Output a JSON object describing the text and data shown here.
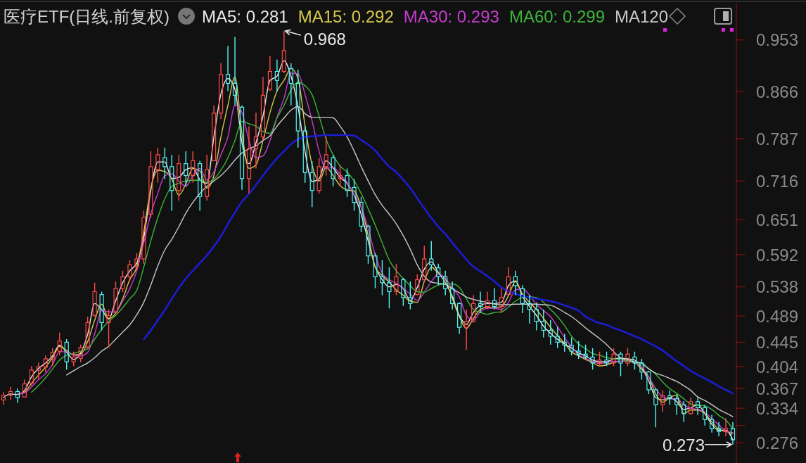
{
  "chart_data": {
    "type": "candlestick",
    "title": "医疗ETF(日线.前复权)",
    "categories": [
      null,
      null,
      null,
      null,
      null,
      null,
      null,
      null,
      null,
      null,
      null,
      null,
      null,
      null,
      null,
      null,
      null,
      null,
      null,
      null,
      null,
      null,
      null,
      null,
      null,
      null,
      null,
      null,
      null,
      null,
      null,
      null,
      null,
      null,
      null,
      null,
      null,
      null,
      null,
      null,
      null,
      null,
      null,
      null,
      null,
      null,
      null,
      null,
      null,
      null,
      null,
      null,
      null,
      null,
      null,
      null,
      null,
      null,
      null,
      null,
      null,
      null,
      null,
      null,
      null,
      null,
      null,
      null,
      null,
      null,
      null,
      null,
      null,
      null,
      null,
      null,
      null,
      null,
      null,
      null,
      null,
      null,
      null,
      null,
      null,
      null,
      null,
      null,
      null,
      null,
      null,
      null,
      null,
      null,
      null,
      null,
      null,
      null,
      null,
      null,
      null,
      null,
      null,
      null,
      null
    ],
    "ohlc": [
      [
        0.348,
        0.361,
        0.34,
        0.356
      ],
      [
        0.356,
        0.37,
        0.348,
        0.362
      ],
      [
        0.362,
        0.367,
        0.343,
        0.352
      ],
      [
        0.353,
        0.382,
        0.352,
        0.375
      ],
      [
        0.376,
        0.405,
        0.372,
        0.398
      ],
      [
        0.398,
        0.411,
        0.382,
        0.404
      ],
      [
        0.403,
        0.423,
        0.394,
        0.417
      ],
      [
        0.416,
        0.435,
        0.405,
        0.428
      ],
      [
        0.43,
        0.461,
        0.423,
        0.447
      ],
      [
        0.445,
        0.45,
        0.399,
        0.412
      ],
      [
        0.412,
        0.429,
        0.405,
        0.42
      ],
      [
        0.418,
        0.441,
        0.411,
        0.436
      ],
      [
        0.437,
        0.488,
        0.435,
        0.478
      ],
      [
        0.49,
        0.545,
        0.488,
        0.53
      ],
      [
        0.525,
        0.53,
        0.465,
        0.478
      ],
      [
        0.478,
        0.5,
        0.436,
        0.49
      ],
      [
        0.495,
        0.547,
        0.494,
        0.535
      ],
      [
        0.535,
        0.565,
        0.529,
        0.555
      ],
      [
        0.555,
        0.583,
        0.547,
        0.575
      ],
      [
        0.572,
        0.595,
        0.565,
        0.585
      ],
      [
        0.585,
        0.666,
        0.577,
        0.655
      ],
      [
        0.66,
        0.766,
        0.654,
        0.74
      ],
      [
        0.735,
        0.772,
        0.713,
        0.76
      ],
      [
        0.755,
        0.772,
        0.719,
        0.74
      ],
      [
        0.74,
        0.76,
        0.666,
        0.7
      ],
      [
        0.7,
        0.76,
        0.683,
        0.745
      ],
      [
        0.745,
        0.766,
        0.707,
        0.725
      ],
      [
        0.725,
        0.766,
        0.713,
        0.75
      ],
      [
        0.745,
        0.75,
        0.666,
        0.69
      ],
      [
        0.69,
        0.76,
        0.683,
        0.735
      ],
      [
        0.75,
        0.843,
        0.749,
        0.83
      ],
      [
        0.83,
        0.914,
        0.82,
        0.895
      ],
      [
        0.895,
        0.943,
        0.867,
        0.88
      ],
      [
        0.88,
        0.958,
        0.843,
        0.86
      ],
      [
        0.84,
        0.843,
        0.701,
        0.72
      ],
      [
        0.72,
        0.808,
        0.695,
        0.77
      ],
      [
        0.77,
        0.831,
        0.737,
        0.79
      ],
      [
        0.79,
        0.891,
        0.784,
        0.86
      ],
      [
        0.87,
        0.926,
        0.867,
        0.9
      ],
      [
        0.9,
        0.92,
        0.867,
        0.885
      ],
      [
        0.9,
        0.968,
        0.897,
        0.935
      ],
      [
        0.905,
        0.914,
        0.843,
        0.88
      ],
      [
        0.88,
        0.903,
        0.772,
        0.8
      ],
      [
        0.8,
        0.808,
        0.713,
        0.73
      ],
      [
        0.73,
        0.749,
        0.672,
        0.7
      ],
      [
        0.7,
        0.755,
        0.695,
        0.74
      ],
      [
        0.74,
        0.79,
        0.725,
        0.76
      ],
      [
        0.755,
        0.76,
        0.707,
        0.72
      ],
      [
        0.72,
        0.743,
        0.707,
        0.725
      ],
      [
        0.725,
        0.737,
        0.689,
        0.7
      ],
      [
        0.705,
        0.719,
        0.666,
        0.68
      ],
      [
        0.68,
        0.689,
        0.63,
        0.64
      ],
      [
        0.64,
        0.642,
        0.577,
        0.59
      ],
      [
        0.59,
        0.595,
        0.536,
        0.555
      ],
      [
        0.555,
        0.583,
        0.524,
        0.545
      ],
      [
        0.545,
        0.571,
        0.502,
        0.53
      ],
      [
        0.53,
        0.577,
        0.524,
        0.555
      ],
      [
        0.55,
        0.553,
        0.506,
        0.52
      ],
      [
        0.52,
        0.547,
        0.5,
        0.51
      ],
      [
        0.525,
        0.559,
        0.524,
        0.55
      ],
      [
        0.55,
        0.607,
        0.547,
        0.585
      ],
      [
        0.585,
        0.615,
        0.565,
        0.575
      ],
      [
        0.57,
        0.577,
        0.541,
        0.555
      ],
      [
        0.555,
        0.565,
        0.524,
        0.535
      ],
      [
        0.535,
        0.547,
        0.5,
        0.51
      ],
      [
        0.51,
        0.512,
        0.459,
        0.47
      ],
      [
        0.47,
        0.5,
        0.432,
        0.48
      ],
      [
        0.48,
        0.524,
        0.478,
        0.51
      ],
      [
        0.51,
        0.53,
        0.494,
        0.505
      ],
      [
        0.505,
        0.53,
        0.5,
        0.515
      ],
      [
        0.515,
        0.536,
        0.5,
        0.505
      ],
      [
        0.505,
        0.536,
        0.494,
        0.52
      ],
      [
        0.525,
        0.571,
        0.524,
        0.555
      ],
      [
        0.555,
        0.565,
        0.524,
        0.54
      ],
      [
        0.535,
        0.541,
        0.494,
        0.51
      ],
      [
        0.51,
        0.524,
        0.476,
        0.5
      ],
      [
        0.5,
        0.512,
        0.465,
        0.48
      ],
      [
        0.48,
        0.5,
        0.453,
        0.465
      ],
      [
        0.465,
        0.482,
        0.441,
        0.455
      ],
      [
        0.455,
        0.471,
        0.435,
        0.445
      ],
      [
        0.445,
        0.459,
        0.429,
        0.44
      ],
      [
        0.44,
        0.453,
        0.423,
        0.43
      ],
      [
        0.43,
        0.447,
        0.417,
        0.425
      ],
      [
        0.425,
        0.441,
        0.417,
        0.42
      ],
      [
        0.42,
        0.435,
        0.399,
        0.41
      ],
      [
        0.41,
        0.429,
        0.405,
        0.415
      ],
      [
        0.415,
        0.429,
        0.405,
        0.41
      ],
      [
        0.41,
        0.435,
        0.405,
        0.425
      ],
      [
        0.425,
        0.429,
        0.388,
        0.41
      ],
      [
        0.41,
        0.435,
        0.405,
        0.425
      ],
      [
        0.42,
        0.429,
        0.399,
        0.41
      ],
      [
        0.41,
        0.417,
        0.382,
        0.395
      ],
      [
        0.395,
        0.397,
        0.358,
        0.365
      ],
      [
        0.365,
        0.368,
        0.302,
        0.34
      ],
      [
        0.34,
        0.364,
        0.328,
        0.355
      ],
      [
        0.355,
        0.364,
        0.34,
        0.35
      ],
      [
        0.35,
        0.358,
        0.323,
        0.34
      ],
      [
        0.34,
        0.346,
        0.311,
        0.325
      ],
      [
        0.325,
        0.352,
        0.323,
        0.345
      ],
      [
        0.345,
        0.352,
        0.323,
        0.335
      ],
      [
        0.335,
        0.34,
        0.305,
        0.315
      ],
      [
        0.315,
        0.323,
        0.293,
        0.3
      ],
      [
        0.3,
        0.311,
        0.287,
        0.295
      ],
      [
        0.295,
        0.317,
        0.287,
        0.3
      ],
      [
        0.3,
        0.311,
        0.273,
        0.281
      ]
    ],
    "series": [
      {
        "name": "MA5: 0.281",
        "type": "line",
        "color": "#e8e8e8",
        "values": [
          0.352,
          0.358,
          0.357,
          0.364,
          0.387,
          0.401,
          0.41,
          0.422,
          0.44,
          0.428,
          0.416,
          0.427,
          0.458,
          0.51,
          0.5,
          0.484,
          0.515,
          0.545,
          0.565,
          0.578,
          0.62,
          0.7,
          0.748,
          0.748,
          0.72,
          0.722,
          0.735,
          0.738,
          0.718,
          0.712,
          0.79,
          0.862,
          0.888,
          0.87,
          0.78,
          0.745,
          0.78,
          0.825,
          0.885,
          0.892,
          0.918,
          0.892,
          0.84,
          0.765,
          0.715,
          0.72,
          0.75,
          0.738,
          0.722,
          0.712,
          0.692,
          0.66,
          0.615,
          0.572,
          0.55,
          0.538,
          0.542,
          0.535,
          0.515,
          0.537,
          0.568,
          0.58,
          0.562,
          0.545,
          0.522,
          0.49,
          0.475,
          0.495,
          0.507,
          0.51,
          0.51,
          0.512,
          0.54,
          0.548,
          0.522,
          0.505,
          0.49,
          0.472,
          0.46,
          0.45,
          0.442,
          0.435,
          0.427,
          0.422,
          0.415,
          0.412,
          0.412,
          0.417,
          0.418,
          0.417,
          0.415,
          0.402,
          0.38,
          0.352,
          0.348,
          0.352,
          0.345,
          0.332,
          0.335,
          0.34,
          0.325,
          0.307,
          0.297,
          0.297,
          0.281
        ]
      },
      {
        "name": "MA15: 0.292",
        "type": "line",
        "color": "#d8c94a",
        "values": [
          null,
          null,
          0.358,
          0.361,
          0.376,
          0.39,
          0.403,
          0.419,
          0.438,
          0.431,
          0.424,
          0.425,
          0.446,
          0.482,
          0.509,
          0.485,
          0.494,
          0.518,
          0.55,
          0.571,
          0.63,
          0.704,
          0.734,
          0.732,
          0.719,
          0.692,
          0.711,
          0.737,
          0.733,
          0.704,
          0.725,
          0.79,
          0.843,
          0.891,
          0.796,
          0.737,
          0.743,
          0.784,
          0.831,
          0.867,
          0.885,
          0.905,
          0.888,
          0.808,
          0.743,
          0.716,
          0.739,
          0.725,
          0.708,
          0.701,
          0.699,
          0.672,
          0.624,
          0.571,
          0.557,
          0.546,
          0.533,
          0.524,
          0.514,
          0.512,
          0.547,
          0.571,
          0.561,
          0.551,
          0.518,
          0.488,
          0.468,
          0.485,
          0.5,
          0.504,
          0.503,
          0.505,
          0.523,
          0.547,
          0.526,
          0.512,
          0.5,
          0.485,
          0.47,
          0.456,
          0.443,
          0.429,
          0.422,
          0.416,
          0.411,
          0.405,
          0.407,
          0.411,
          0.413,
          0.413,
          0.411,
          0.399,
          0.387,
          0.358,
          0.344,
          0.352,
          0.356,
          0.325,
          0.331,
          0.331,
          0.325,
          0.311,
          0.299,
          0.295,
          0.292
        ]
      },
      {
        "name": "MA30: 0.293",
        "type": "line",
        "color": "#c63ccf",
        "values": [
          null,
          null,
          0.358,
          0.36,
          0.37,
          0.382,
          0.392,
          0.408,
          0.429,
          0.429,
          0.423,
          0.422,
          0.428,
          0.459,
          0.498,
          0.496,
          0.496,
          0.514,
          0.535,
          0.565,
          0.612,
          0.66,
          0.695,
          0.725,
          0.728,
          0.716,
          0.707,
          0.725,
          0.737,
          0.718,
          0.731,
          0.76,
          0.79,
          0.843,
          0.831,
          0.784,
          0.755,
          0.758,
          0.784,
          0.823,
          0.855,
          0.897,
          0.896,
          0.861,
          0.817,
          0.766,
          0.737,
          0.739,
          0.727,
          0.713,
          0.693,
          0.672,
          0.636,
          0.592,
          0.561,
          0.55,
          0.544,
          0.535,
          0.526,
          0.515,
          0.529,
          0.547,
          0.559,
          0.553,
          0.535,
          0.521,
          0.49,
          0.482,
          0.496,
          0.502,
          0.502,
          0.5,
          0.512,
          0.533,
          0.535,
          0.524,
          0.508,
          0.498,
          0.488,
          0.471,
          0.453,
          0.437,
          0.424,
          0.418,
          0.413,
          0.409,
          0.411,
          0.413,
          0.413,
          0.413,
          0.41,
          0.403,
          0.387,
          0.367,
          0.353,
          0.35,
          0.35,
          0.34,
          0.334,
          0.332,
          0.328,
          0.316,
          0.306,
          0.296,
          0.293
        ]
      },
      {
        "name": "MA60: 0.299",
        "type": "line",
        "color": "#3cb43c",
        "values": [
          null,
          null,
          null,
          null,
          0.361,
          0.372,
          0.385,
          0.4,
          0.415,
          0.423,
          0.426,
          0.43,
          0.434,
          0.45,
          0.467,
          0.48,
          0.49,
          0.503,
          0.518,
          0.532,
          0.571,
          0.615,
          0.654,
          0.686,
          0.707,
          0.712,
          0.716,
          0.717,
          0.717,
          0.714,
          0.719,
          0.734,
          0.755,
          0.784,
          0.816,
          0.812,
          0.808,
          0.799,
          0.796,
          0.822,
          0.843,
          0.869,
          0.882,
          0.876,
          0.861,
          0.825,
          0.786,
          0.76,
          0.741,
          0.731,
          0.716,
          0.695,
          0.669,
          0.642,
          0.612,
          0.583,
          0.565,
          0.552,
          0.54,
          0.53,
          0.529,
          0.535,
          0.541,
          0.543,
          0.543,
          0.537,
          0.518,
          0.5,
          0.495,
          0.492,
          0.495,
          0.496,
          0.504,
          0.514,
          0.52,
          0.521,
          0.52,
          0.512,
          0.5,
          0.488,
          0.473,
          0.455,
          0.442,
          0.434,
          0.426,
          0.423,
          0.419,
          0.417,
          0.416,
          0.413,
          0.411,
          0.407,
          0.401,
          0.391,
          0.378,
          0.367,
          0.359,
          0.35,
          0.341,
          0.339,
          0.338,
          0.332,
          0.322,
          0.314,
          0.299
        ]
      },
      {
        "name": "MA120",
        "type": "line",
        "color": "#c8c8c8",
        "values": [
          null,
          null,
          null,
          null,
          null,
          null,
          null,
          null,
          null,
          0.39,
          0.397,
          0.404,
          0.41,
          0.419,
          0.43,
          0.438,
          0.45,
          0.462,
          0.474,
          0.491,
          0.512,
          0.541,
          0.573,
          0.6,
          0.618,
          0.639,
          0.662,
          0.68,
          0.695,
          0.707,
          0.716,
          0.725,
          0.737,
          0.751,
          0.763,
          0.77,
          0.775,
          0.784,
          0.792,
          0.808,
          0.822,
          0.835,
          0.841,
          0.829,
          0.823,
          0.823,
          0.823,
          0.822,
          0.808,
          0.79,
          0.766,
          0.74,
          0.716,
          0.693,
          0.675,
          0.66,
          0.644,
          0.624,
          0.601,
          0.575,
          0.556,
          0.546,
          0.544,
          0.542,
          0.535,
          0.528,
          0.521,
          0.517,
          0.514,
          0.512,
          0.509,
          0.508,
          0.508,
          0.509,
          0.509,
          0.509,
          0.509,
          0.508,
          0.507,
          0.502,
          0.495,
          0.488,
          0.479,
          0.469,
          0.46,
          0.451,
          0.441,
          0.429,
          0.419,
          0.415,
          0.412,
          0.41,
          0.4,
          0.393,
          0.389,
          0.384,
          0.379,
          0.372,
          0.364,
          0.353,
          0.347,
          0.34,
          0.332,
          0.326,
          0.32
        ]
      },
      {
        "type": "line",
        "color": "#1c1cd2",
        "values": [
          null,
          null,
          null,
          null,
          null,
          null,
          null,
          null,
          null,
          null,
          null,
          null,
          null,
          null,
          null,
          null,
          null,
          null,
          null,
          null,
          0.45,
          0.465,
          0.482,
          0.499,
          0.518,
          0.536,
          0.552,
          0.565,
          0.578,
          0.591,
          0.606,
          0.623,
          0.644,
          0.663,
          0.681,
          0.694,
          0.709,
          0.725,
          0.74,
          0.754,
          0.766,
          0.778,
          0.786,
          0.79,
          0.791,
          0.792,
          0.793,
          0.793,
          0.793,
          0.793,
          0.792,
          0.785,
          0.777,
          0.767,
          0.753,
          0.74,
          0.731,
          0.718,
          0.704,
          0.687,
          0.67,
          0.654,
          0.639,
          0.627,
          0.612,
          0.598,
          0.584,
          0.572,
          0.564,
          0.556,
          0.547,
          0.537,
          0.531,
          0.526,
          0.523,
          0.52,
          0.518,
          0.516,
          0.514,
          0.511,
          0.507,
          0.503,
          0.498,
          0.488,
          0.482,
          0.477,
          0.474,
          0.469,
          0.465,
          0.46,
          0.455,
          0.45,
          0.444,
          0.438,
          0.431,
          0.422,
          0.413,
          0.405,
          0.397,
          0.39,
          0.384,
          0.378,
          0.371,
          0.365,
          0.359
        ]
      }
    ],
    "ylim": [
      0.242,
      1.013
    ],
    "yticks": [
      0.953,
      0.866,
      0.787,
      0.716,
      0.651,
      0.592,
      0.538,
      0.489,
      0.445,
      0.404,
      0.367,
      0.334,
      {
        "value": 0.305,
        "label": null
      },
      0.276
    ],
    "grid": "y",
    "legend": "top",
    "annotations": [
      "0.968",
      "0.273"
    ]
  }
}
